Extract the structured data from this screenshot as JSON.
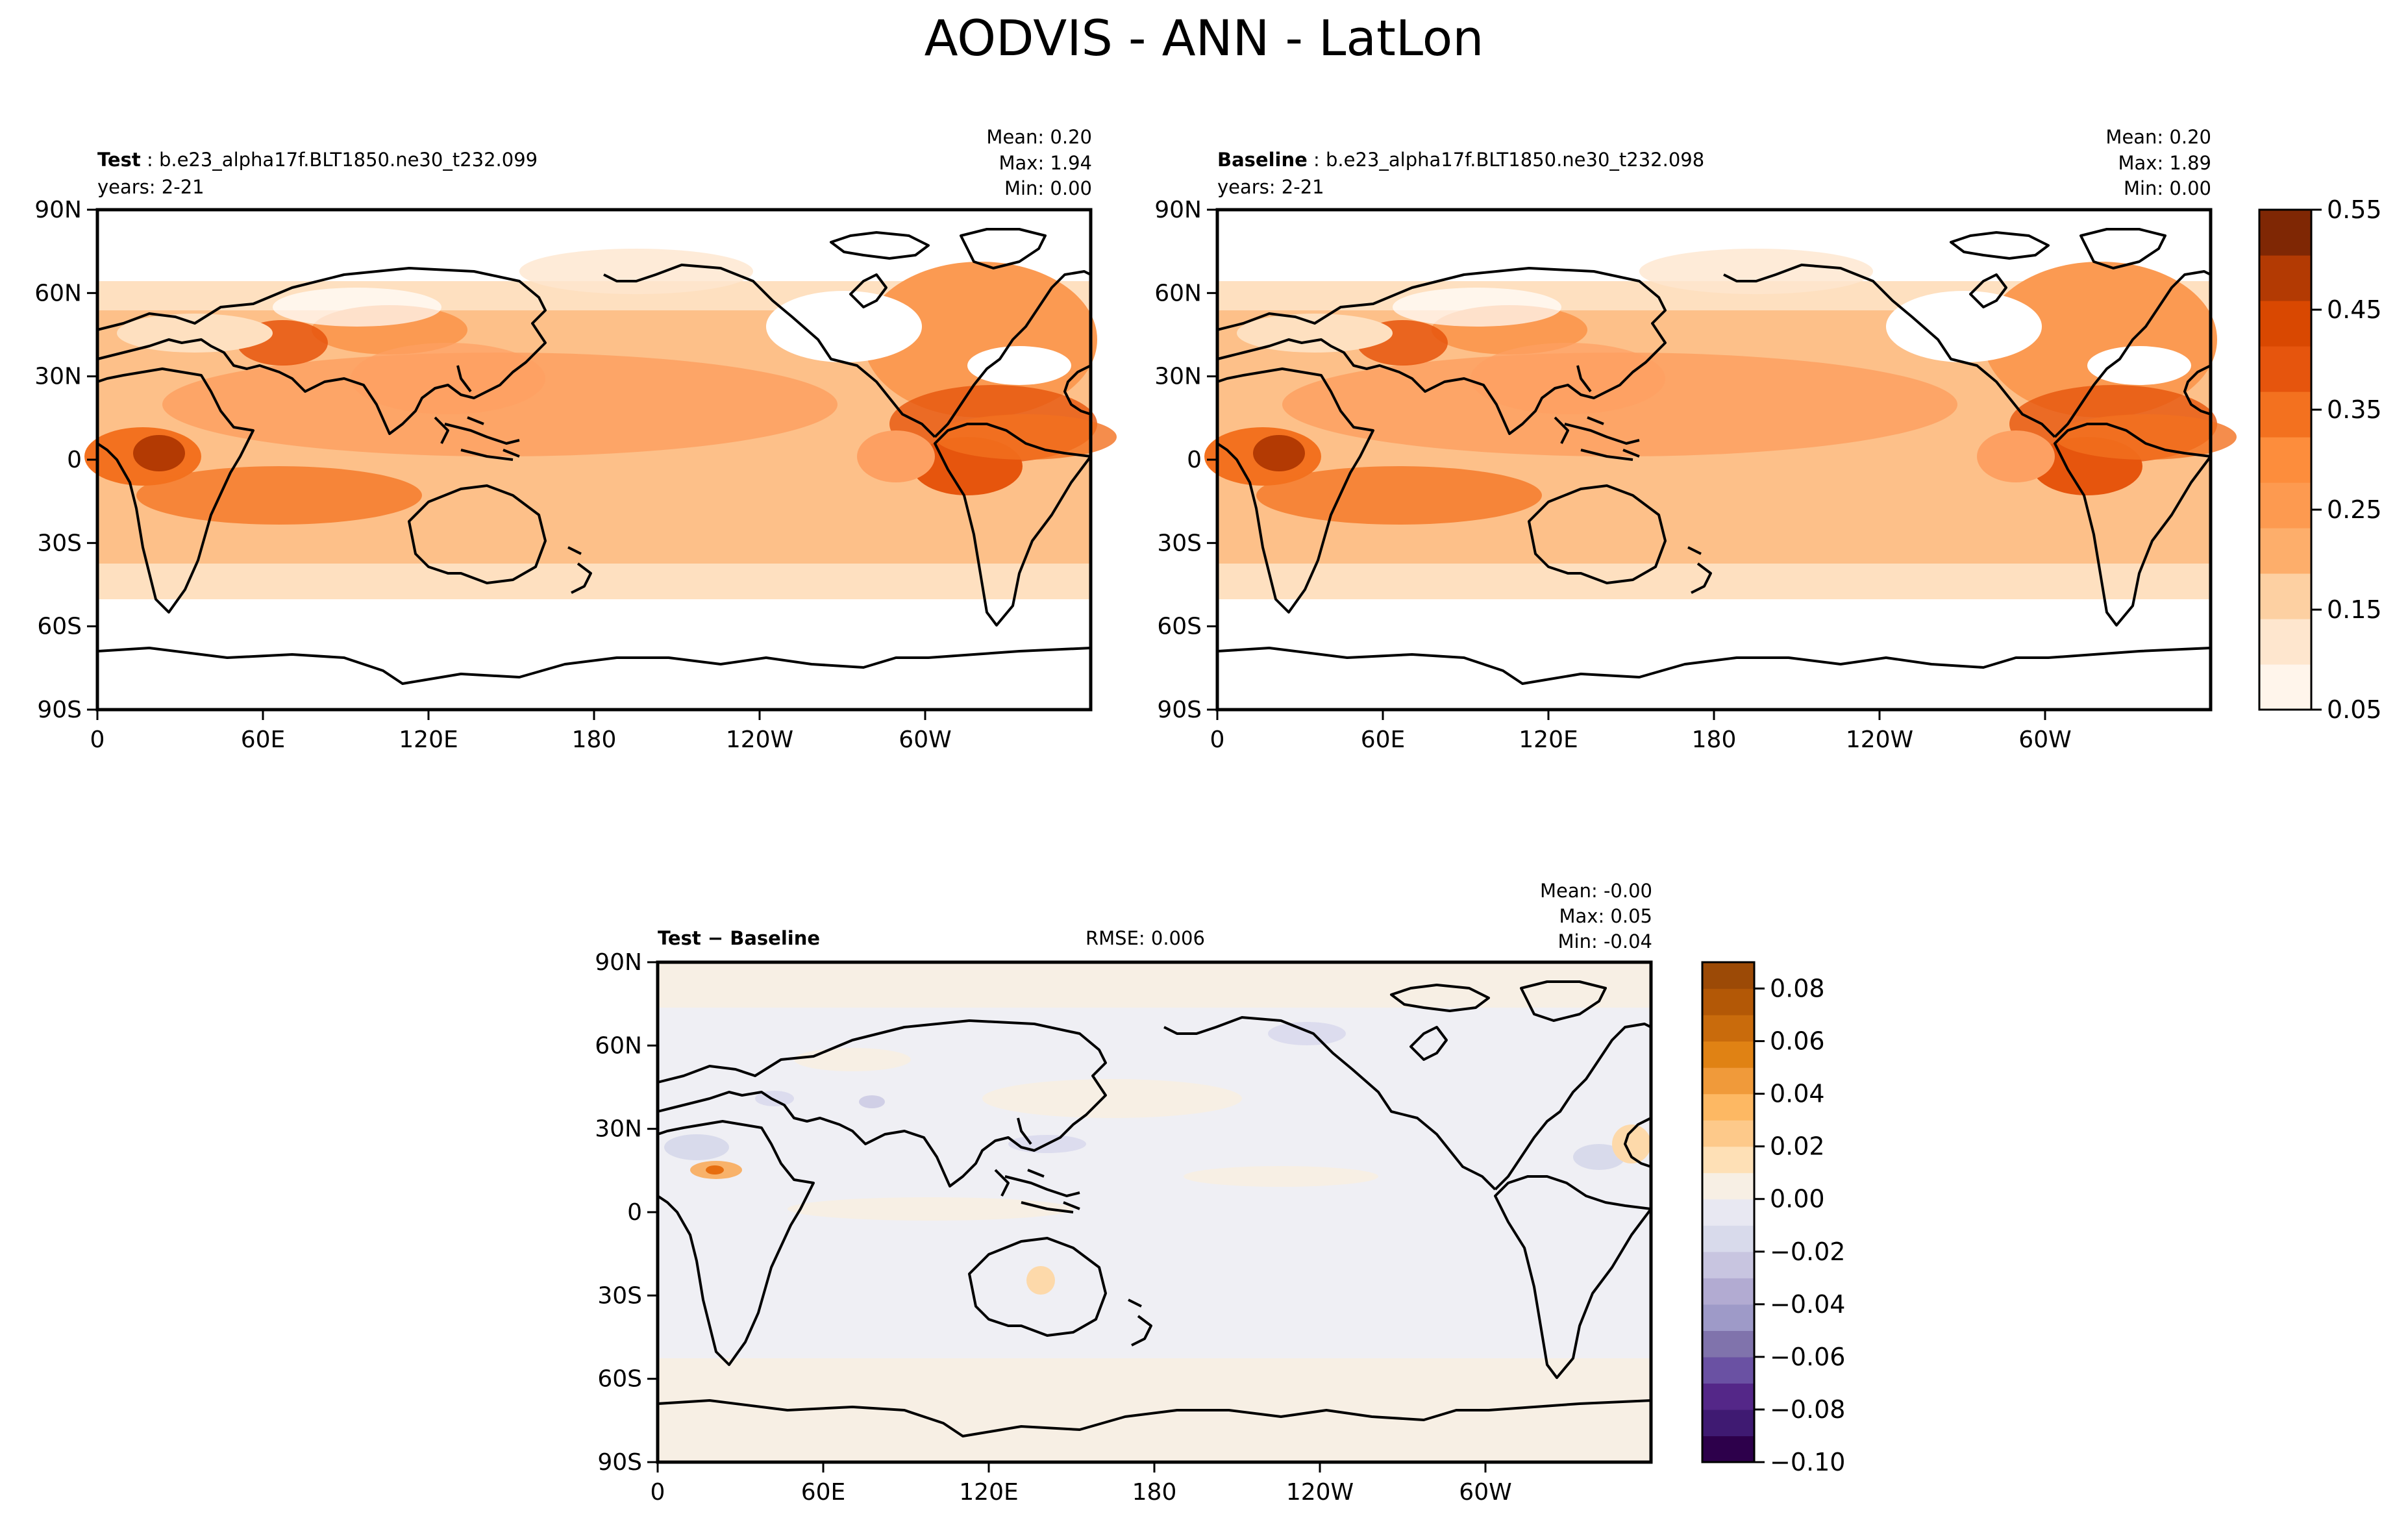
{
  "title": "AODVIS - ANN - LatLon",
  "panels": [
    {
      "id": "test",
      "label_bold": "Test",
      "label_rest": " : b.e23_alpha17f.BLT1850.ne30_t232.099",
      "years": "years: 2-21",
      "stats": {
        "mean": "Mean:  0.20",
        "max": "Max:  1.94",
        "min": "Min:  0.00"
      },
      "rmse": ""
    },
    {
      "id": "baseline",
      "label_bold": "Baseline",
      "label_rest": " : b.e23_alpha17f.BLT1850.ne30_t232.098",
      "years": "years: 2-21",
      "stats": {
        "mean": "Mean:  0.20",
        "max": "Max:  1.89",
        "min": "Min:  0.00"
      },
      "rmse": ""
    },
    {
      "id": "diff",
      "label_bold": "Test − Baseline",
      "label_rest": "",
      "years": "",
      "stats": {
        "mean": "Mean: -0.00",
        "max": "Max:  0.05",
        "min": "Min: -0.04"
      },
      "rmse": "RMSE: 0.006"
    }
  ],
  "axes": {
    "lat_ticks": [
      "90N",
      "60N",
      "30N",
      "0",
      "30S",
      "60S",
      "90S"
    ],
    "lon_ticks": [
      "0",
      "60E",
      "120E",
      "180",
      "120W",
      "60W"
    ]
  },
  "colorbars": {
    "main": {
      "ticks": [
        "0.55",
        "0.45",
        "0.35",
        "0.25",
        "0.15",
        "0.05"
      ],
      "levels": [
        0.05,
        0.1,
        0.15,
        0.2,
        0.25,
        0.3,
        0.35,
        0.4,
        0.45,
        0.5,
        0.55
      ],
      "colors": [
        "#fff5eb",
        "#fee6ce",
        "#fdd0a2",
        "#fdae6b",
        "#fd9a50",
        "#fd8d3c",
        "#f3711f",
        "#e6550d",
        "#d94801",
        "#b33a03",
        "#7f2704"
      ]
    },
    "diff": {
      "ticks": [
        "0.08",
        "0.06",
        "0.04",
        "0.02",
        "0.00",
        "−0.02",
        "−0.04",
        "−0.06",
        "−0.08",
        "−0.10"
      ],
      "levels": [
        -0.1,
        -0.09,
        -0.08,
        -0.07,
        -0.06,
        -0.05,
        -0.04,
        -0.03,
        -0.02,
        -0.01,
        0.0,
        0.01,
        0.02,
        0.03,
        0.04,
        0.05,
        0.06,
        0.07,
        0.08,
        0.09
      ],
      "colors": [
        "#2d004b",
        "#3f1a72",
        "#542788",
        "#6a51a3",
        "#8073ac",
        "#9e9ac8",
        "#b2abd2",
        "#c8c5e0",
        "#d8daeb",
        "#e8e8f2",
        "#f7efe4",
        "#fee0b6",
        "#fdc98a",
        "#fdb863",
        "#f09a3a",
        "#e08214",
        "#c96b0c",
        "#b35806",
        "#9c4a06"
      ]
    }
  },
  "chart_data": [
    {
      "type": "heatmap",
      "subtitle": "Test : b.e23_alpha17f.BLT1850.ne30_t232.099",
      "x_ticks": [
        "0",
        "60E",
        "120E",
        "180",
        "120W",
        "60W"
      ],
      "y_ticks": [
        "90N",
        "60N",
        "30N",
        "0",
        "30S",
        "60S",
        "90S"
      ],
      "xlim": [
        0,
        360
      ],
      "ylim": [
        -90,
        90
      ],
      "colorbar_range": [
        0.05,
        0.55
      ],
      "stats": {
        "mean": 0.2,
        "max": 1.94,
        "min": 0.0
      }
    },
    {
      "type": "heatmap",
      "subtitle": "Baseline : b.e23_alpha17f.BLT1850.ne30_t232.098",
      "x_ticks": [
        "0",
        "60E",
        "120E",
        "180",
        "120W",
        "60W"
      ],
      "y_ticks": [
        "90N",
        "60N",
        "30N",
        "0",
        "30S",
        "60S",
        "90S"
      ],
      "xlim": [
        0,
        360
      ],
      "ylim": [
        -90,
        90
      ],
      "colorbar_range": [
        0.05,
        0.55
      ],
      "stats": {
        "mean": 0.2,
        "max": 1.89,
        "min": 0.0
      }
    },
    {
      "type": "heatmap",
      "subtitle": "Test − Baseline",
      "x_ticks": [
        "0",
        "60E",
        "120E",
        "180",
        "120W",
        "60W"
      ],
      "y_ticks": [
        "90N",
        "60N",
        "30N",
        "0",
        "30S",
        "60S",
        "90S"
      ],
      "xlim": [
        0,
        360
      ],
      "ylim": [
        -90,
        90
      ],
      "colorbar_range": [
        -0.1,
        0.09
      ],
      "stats": {
        "mean": -0.0,
        "max": 0.05,
        "min": -0.04,
        "rmse": 0.006
      }
    }
  ]
}
